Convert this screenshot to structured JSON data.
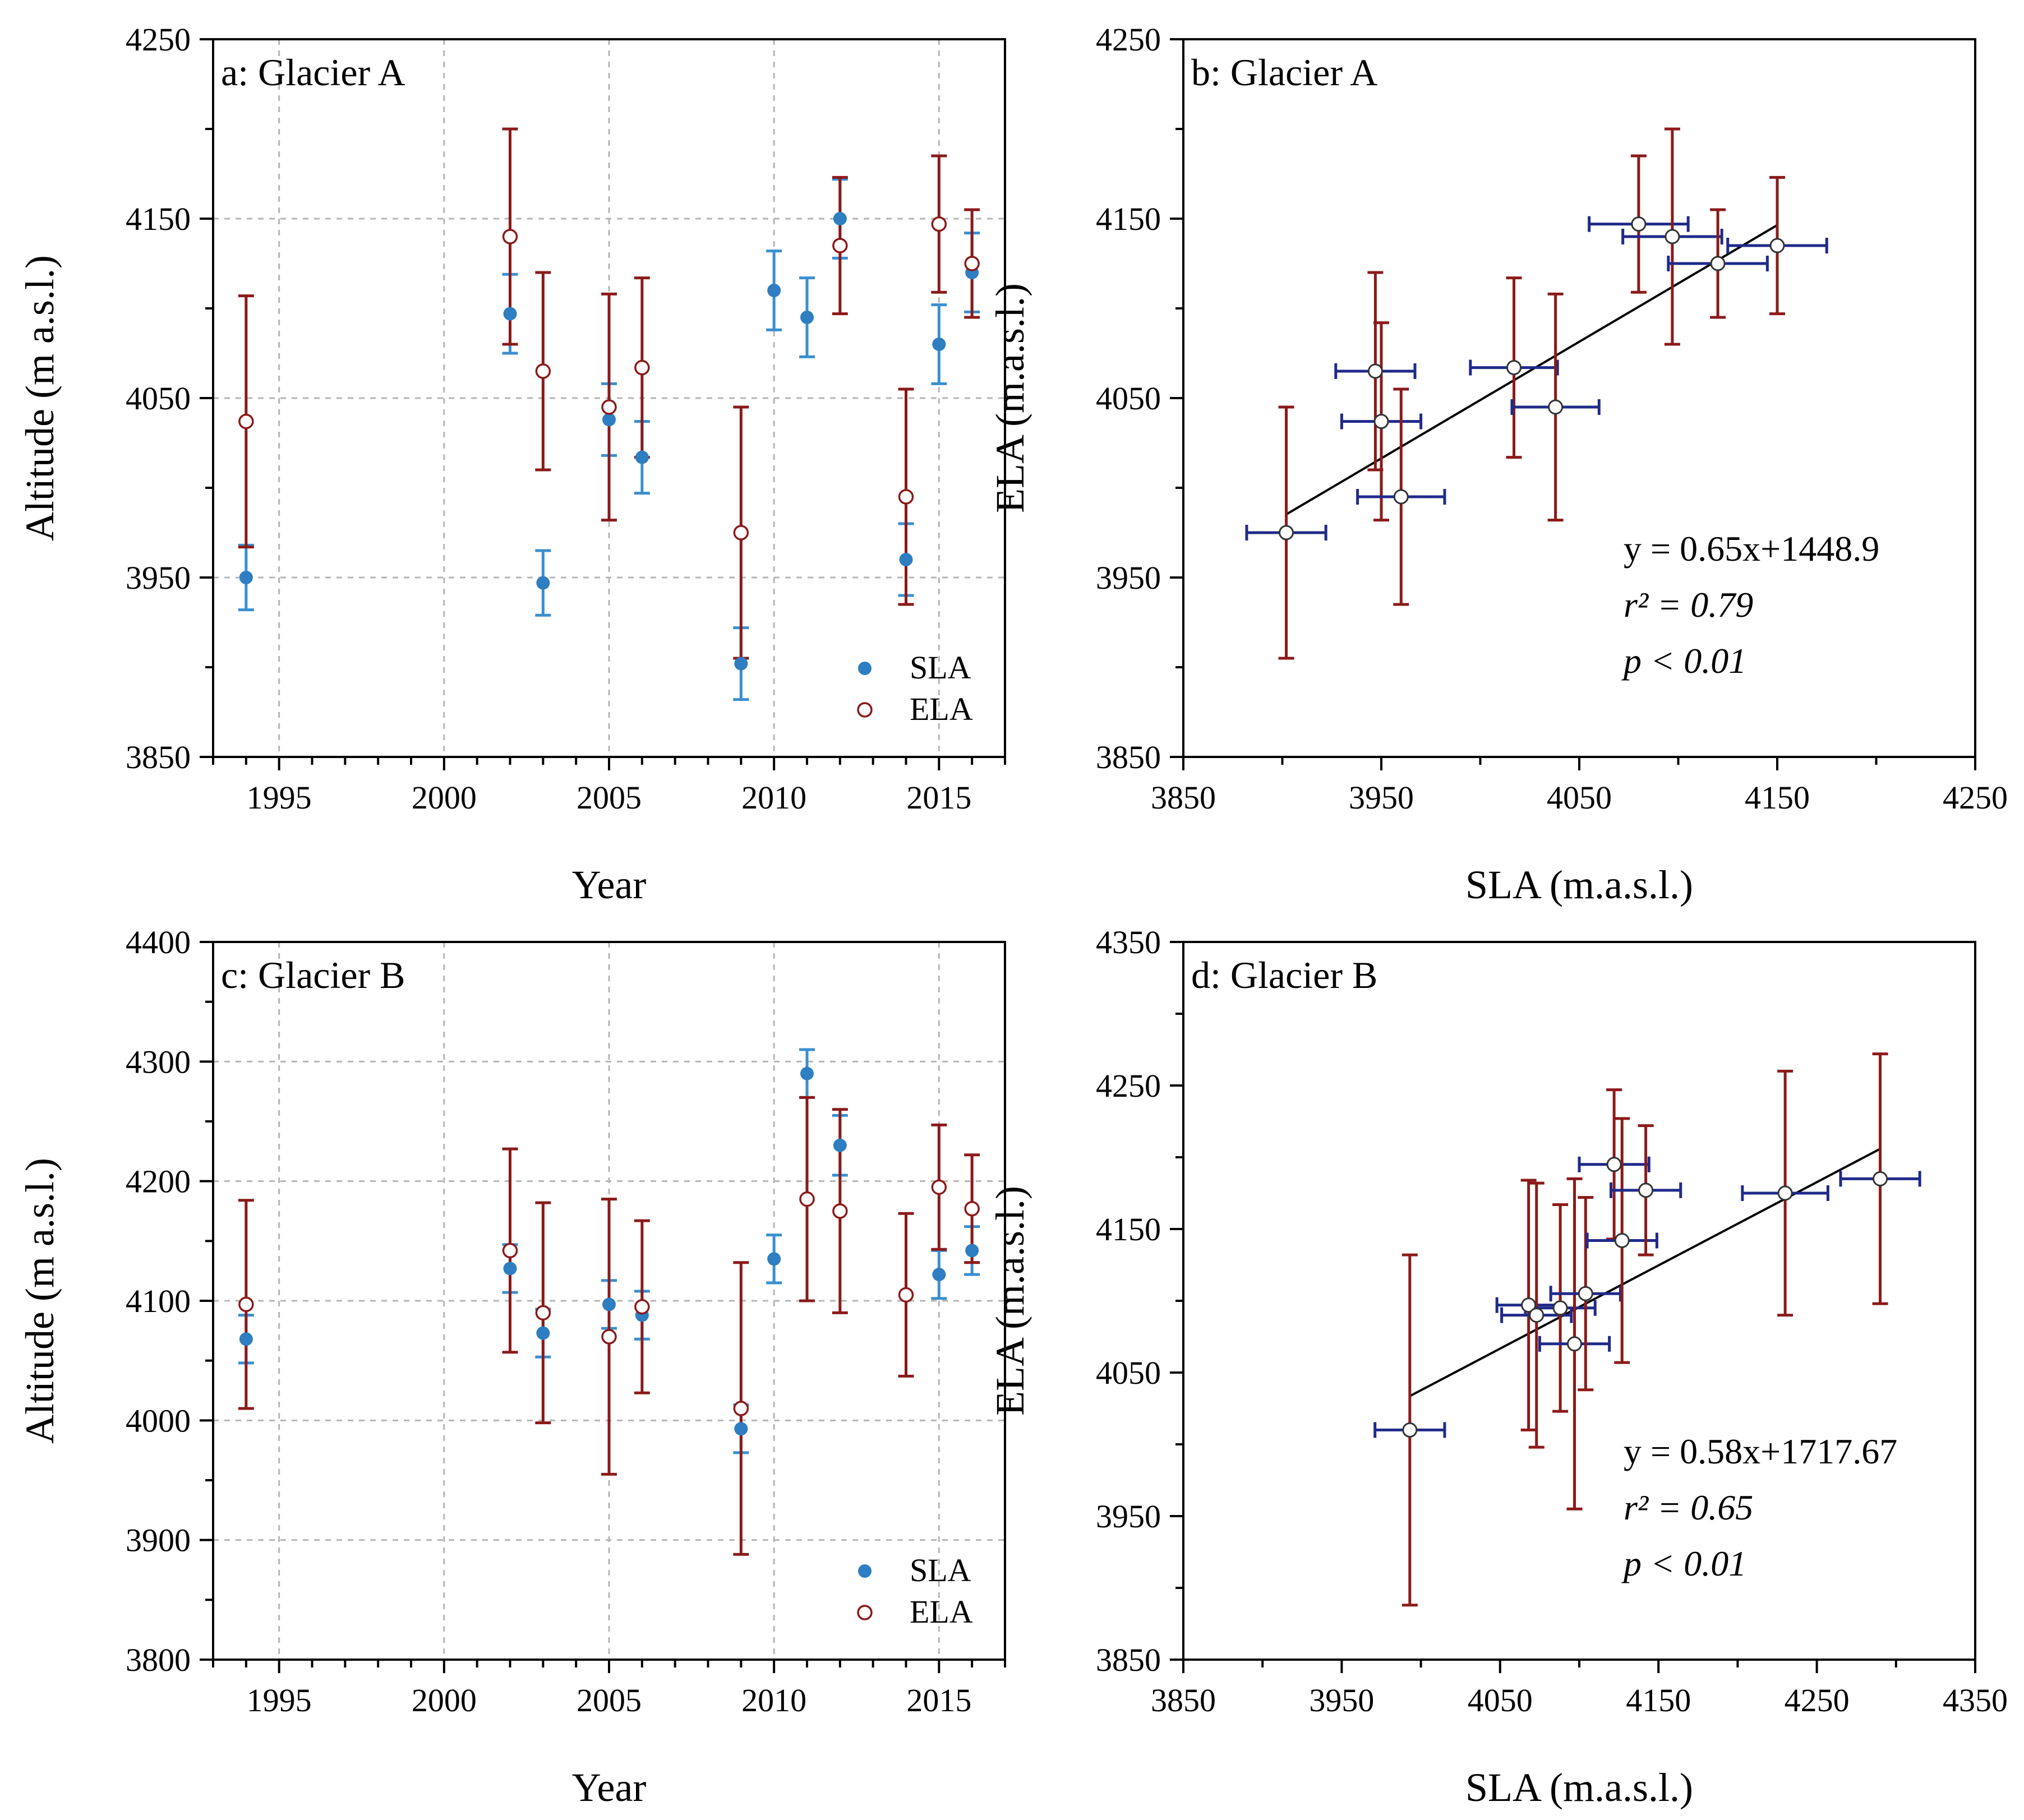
{
  "figure": {
    "panels": 4
  },
  "colors": {
    "sla": "#2E7EC1",
    "sla_err": "#3A8FD0",
    "ela": "#8B1A1A",
    "xerr": "#1F2A8A",
    "grid": "#B5B5B5",
    "axis": "#000000"
  },
  "chart_data": [
    {
      "id": "a",
      "type": "scatter",
      "title": "a: Glacier A",
      "xlabel": "Year",
      "ylabel": "Altitude (m a.s.l.)",
      "xlim": [
        1993,
        2017
      ],
      "ylim": [
        3850,
        4250
      ],
      "xticks": [
        1995,
        2000,
        2005,
        2010,
        2015
      ],
      "yticks": [
        3850,
        3950,
        4050,
        4150,
        4250
      ],
      "grid": true,
      "legend": {
        "position": "bottom-right",
        "entries": [
          "SLA",
          "ELA"
        ]
      },
      "series": [
        {
          "name": "SLA",
          "marker": "filled-circle",
          "x": [
            1994,
            2002,
            2003,
            2005,
            2006,
            2009,
            2010,
            2011,
            2012,
            2014,
            2015,
            2016
          ],
          "y": [
            3950,
            4097,
            3947,
            4038,
            4017,
            3902,
            4110,
            4095,
            4150,
            3960,
            4080,
            4120
          ],
          "err": [
            18,
            22,
            18,
            20,
            20,
            20,
            22,
            22,
            22,
            20,
            22,
            22
          ]
        },
        {
          "name": "ELA",
          "marker": "open-circle",
          "x": [
            1994,
            2002,
            2003,
            2005,
            2006,
            2009,
            2012,
            2014,
            2015,
            2016
          ],
          "y": [
            4037,
            4140,
            4065,
            4045,
            4067,
            3975,
            4135,
            3995,
            4147,
            4125
          ],
          "err": [
            70,
            60,
            55,
            63,
            50,
            70,
            38,
            60,
            38,
            30
          ]
        }
      ]
    },
    {
      "id": "b",
      "type": "scatter",
      "title": "b: Glacier A",
      "xlabel": "SLA (m.a.s.l.)",
      "ylabel": "ELA (m.a.s.l.)",
      "xlim": [
        3850,
        4250
      ],
      "ylim": [
        3850,
        4250
      ],
      "xticks": [
        3850,
        3950,
        4050,
        4150,
        4250
      ],
      "yticks": [
        3850,
        3950,
        4050,
        4150,
        4250
      ],
      "grid": false,
      "points": {
        "x": [
          3902,
          3947,
          3950,
          3960,
          4017,
          4038,
          4080,
          4097,
          4120,
          4150
        ],
        "y": [
          3975,
          4065,
          4037,
          3995,
          4067,
          4045,
          4147,
          4140,
          4125,
          4135
        ],
        "xerr": [
          20,
          20,
          20,
          22,
          22,
          22,
          25,
          25,
          25,
          25
        ],
        "yerr": [
          70,
          55,
          55,
          60,
          50,
          63,
          38,
          60,
          30,
          38
        ]
      },
      "fit": {
        "slope": 0.65,
        "intercept": 1448.9,
        "x_range": [
          3902,
          4150
        ]
      },
      "annotations": {
        "equation": "y = 0.65x+1448.9",
        "r2": "r² = 0.79",
        "p": "p < 0.01"
      }
    },
    {
      "id": "c",
      "type": "scatter",
      "title": "c: Glacier B",
      "xlabel": "Year",
      "ylabel": "Altitude (m a.s.l.)",
      "xlim": [
        1993,
        2017
      ],
      "ylim": [
        3800,
        4400
      ],
      "xticks": [
        1995,
        2000,
        2005,
        2010,
        2015
      ],
      "yticks": [
        3800,
        3900,
        4000,
        4100,
        4200,
        4300,
        4400
      ],
      "grid": true,
      "legend": {
        "position": "bottom-right",
        "entries": [
          "SLA",
          "ELA"
        ]
      },
      "series": [
        {
          "name": "SLA",
          "marker": "filled-circle",
          "x": [
            1994,
            2002,
            2003,
            2005,
            2006,
            2009,
            2010,
            2011,
            2012,
            2015,
            2016
          ],
          "y": [
            4068,
            4127,
            4073,
            4097,
            4088,
            3993,
            4135,
            4290,
            4230,
            4122,
            4142
          ],
          "err": [
            20,
            20,
            20,
            20,
            20,
            20,
            20,
            20,
            25,
            20,
            20
          ]
        },
        {
          "name": "ELA",
          "marker": "open-circle",
          "x": [
            1994,
            2002,
            2003,
            2005,
            2006,
            2009,
            2011,
            2012,
            2014,
            2015,
            2016
          ],
          "y": [
            4097,
            4142,
            4090,
            4070,
            4095,
            4010,
            4185,
            4175,
            4105,
            4195,
            4177
          ],
          "err": [
            87,
            85,
            92,
            115,
            72,
            122,
            85,
            85,
            68,
            52,
            45
          ]
        }
      ]
    },
    {
      "id": "d",
      "type": "scatter",
      "title": "d: Glacier B",
      "xlabel": "SLA (m.a.s.l.)",
      "ylabel": "ELA (m.a.s.l.)",
      "xlim": [
        3850,
        4350
      ],
      "ylim": [
        3850,
        4350
      ],
      "xticks": [
        3850,
        3950,
        4050,
        4150,
        4250,
        4350
      ],
      "yticks": [
        3850,
        3950,
        4050,
        4150,
        4250,
        4350
      ],
      "grid": false,
      "points": {
        "x": [
          3993,
          4068,
          4073,
          4088,
          4097,
          4104,
          4122,
          4127,
          4142,
          4230,
          4290
        ],
        "y": [
          4010,
          4097,
          4090,
          4095,
          4070,
          4105,
          4195,
          4142,
          4177,
          4175,
          4185
        ],
        "xerr": [
          22,
          20,
          22,
          22,
          22,
          22,
          22,
          22,
          22,
          27,
          25
        ],
        "yerr": [
          122,
          87,
          92,
          72,
          115,
          67,
          52,
          85,
          45,
          85,
          87
        ]
      },
      "fit": {
        "slope": 0.58,
        "intercept": 1717.67,
        "x_range": [
          3993,
          4290
        ]
      },
      "annotations": {
        "equation": "y = 0.58x+1717.67",
        "r2": "r² = 0.65",
        "p": "p < 0.01"
      }
    }
  ]
}
